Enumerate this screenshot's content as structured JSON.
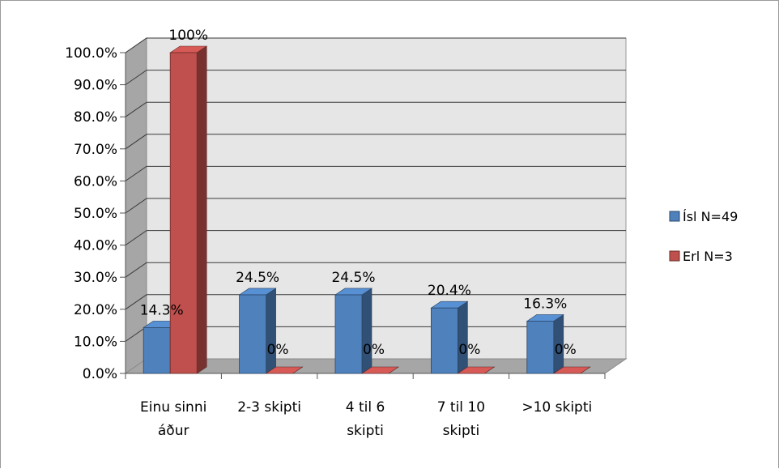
{
  "chart_data": {
    "type": "bar",
    "categories": [
      [
        "Einu sinni",
        "áður"
      ],
      [
        "2-3 skipti"
      ],
      [
        "4 til 6",
        "skipti"
      ],
      [
        "7 til 10",
        "skipti"
      ],
      [
        ">10 skipti"
      ]
    ],
    "series": [
      {
        "name": "Ísl  N=49",
        "values": [
          14.3,
          24.5,
          24.5,
          20.4,
          16.3
        ],
        "labels": [
          "14.3%",
          "24.5%",
          "24.5%",
          "20.4%",
          "16.3%"
        ],
        "color": "#4f81bd"
      },
      {
        "name": "Erl  N=3",
        "values": [
          100,
          0,
          0,
          0,
          0
        ],
        "labels": [
          "100%",
          "0%",
          "0%",
          "0%",
          "0%"
        ],
        "color": "#c0504d"
      }
    ],
    "yticks": [
      "0.0%",
      "10.0%",
      "20.0%",
      "30.0%",
      "40.0%",
      "50.0%",
      "60.0%",
      "70.0%",
      "80.0%",
      "90.0%",
      "100.0%"
    ],
    "ylim": [
      0,
      100
    ],
    "grid": true,
    "legend": "right",
    "style": "3d-clustered-column"
  }
}
